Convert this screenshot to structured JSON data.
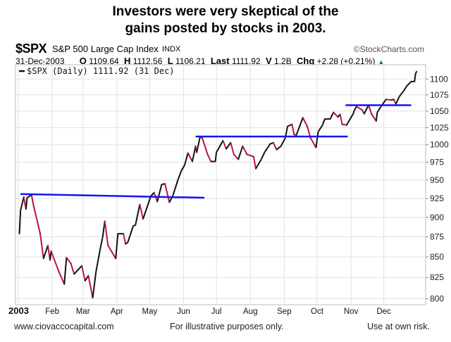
{
  "title": {
    "line1": "Investors were very skeptical of the",
    "line2": "gains posted by stocks in 2003."
  },
  "header": {
    "symbol": "$SPX",
    "name": "S&P 500 Large Cap Index",
    "exchange": "INDX",
    "brand": "©StockCharts.com",
    "date": "31-Dec-2003",
    "open_label": "O",
    "open": "1109.64",
    "high_label": "H",
    "high": "1112.56",
    "low_label": "L",
    "low": "1106.21",
    "last_label": "Last",
    "last": "1111.92",
    "volume_label": "V",
    "volume": "1.2B",
    "change_label": "Chg",
    "change": "+2.28 (+0.21%)",
    "change_icon": "up-triangle-icon"
  },
  "footer": {
    "website": "www.ciovaccocapital.com",
    "disclaimer": "For illustrative purposes only.",
    "risk": "Use at own risk."
  },
  "chart_data": {
    "type": "line",
    "legend": "$SPX (Daily) 1111.92 (31 Dec)",
    "legend_placement": "top-left",
    "y_scale": "log",
    "ylim": [
      793,
      1123
    ],
    "xlim": [
      "2003-01-01",
      "2003-12-31"
    ],
    "grid": true,
    "y_ticks": [
      1100,
      1075,
      1050,
      1025,
      1000,
      975,
      950,
      925,
      900,
      875,
      850,
      825,
      800
    ],
    "x_ticks": [
      {
        "date": "2003-01-01",
        "label": "2003",
        "bold": true
      },
      {
        "date": "2003-02-01",
        "label": "Feb"
      },
      {
        "date": "2003-03-01",
        "label": "Mar"
      },
      {
        "date": "2003-04-01",
        "label": "Apr"
      },
      {
        "date": "2003-05-01",
        "label": "May"
      },
      {
        "date": "2003-06-01",
        "label": "Jun"
      },
      {
        "date": "2003-07-01",
        "label": "Jul"
      },
      {
        "date": "2003-08-01",
        "label": "Aug"
      },
      {
        "date": "2003-09-01",
        "label": "Sep"
      },
      {
        "date": "2003-10-01",
        "label": "Oct"
      },
      {
        "date": "2003-11-01",
        "label": "Nov"
      },
      {
        "date": "2003-12-01",
        "label": "Dec"
      }
    ],
    "colors": {
      "up": "#111111",
      "down": "#c0143c",
      "trendline": "#1414f0",
      "grid": "#e2e2e2"
    },
    "series": [
      {
        "points": [
          [
            "2003-01-02",
            879
          ],
          [
            "2003-01-03",
            909
          ],
          [
            "2003-01-06",
            927
          ],
          [
            "2003-01-08",
            911
          ],
          [
            "2003-01-09",
            926
          ],
          [
            "2003-01-13",
            930
          ],
          [
            "2003-01-15",
            915
          ],
          [
            "2003-01-21",
            879
          ],
          [
            "2003-01-24",
            848
          ],
          [
            "2003-01-28",
            864
          ],
          [
            "2003-01-30",
            846
          ],
          [
            "2003-01-31",
            857
          ],
          [
            "2003-02-07",
            832
          ],
          [
            "2003-02-12",
            817
          ],
          [
            "2003-02-14",
            849
          ],
          [
            "2003-02-18",
            842
          ],
          [
            "2003-02-21",
            829
          ],
          [
            "2003-02-28",
            839
          ],
          [
            "2003-03-03",
            821
          ],
          [
            "2003-03-06",
            827
          ],
          [
            "2003-03-10",
            801
          ],
          [
            "2003-03-13",
            832
          ],
          [
            "2003-03-17",
            861
          ],
          [
            "2003-03-19",
            874
          ],
          [
            "2003-03-21",
            895
          ],
          [
            "2003-03-24",
            864
          ],
          [
            "2003-03-31",
            848
          ],
          [
            "2003-04-02",
            879
          ],
          [
            "2003-04-07",
            879
          ],
          [
            "2003-04-09",
            866
          ],
          [
            "2003-04-11",
            868
          ],
          [
            "2003-04-16",
            889
          ],
          [
            "2003-04-18",
            890
          ],
          [
            "2003-04-22",
            917
          ],
          [
            "2003-04-25",
            898
          ],
          [
            "2003-04-29",
            915
          ],
          [
            "2003-05-02",
            928
          ],
          [
            "2003-05-05",
            933
          ],
          [
            "2003-05-08",
            921
          ],
          [
            "2003-05-12",
            944
          ],
          [
            "2003-05-15",
            945
          ],
          [
            "2003-05-19",
            920
          ],
          [
            "2003-05-22",
            928
          ],
          [
            "2003-05-27",
            951
          ],
          [
            "2003-05-30",
            963
          ],
          [
            "2003-06-02",
            971
          ],
          [
            "2003-06-05",
            988
          ],
          [
            "2003-06-09",
            976
          ],
          [
            "2003-06-12",
            998
          ],
          [
            "2003-06-13",
            989
          ],
          [
            "2003-06-16",
            1011
          ],
          [
            "2003-06-18",
            1010
          ],
          [
            "2003-06-23",
            986
          ],
          [
            "2003-06-26",
            976
          ],
          [
            "2003-06-30",
            976
          ],
          [
            "2003-07-01",
            989
          ],
          [
            "2003-07-07",
            1006
          ],
          [
            "2003-07-10",
            994
          ],
          [
            "2003-07-14",
            1003
          ],
          [
            "2003-07-17",
            986
          ],
          [
            "2003-07-21",
            979
          ],
          [
            "2003-07-25",
            998
          ],
          [
            "2003-07-29",
            986
          ],
          [
            "2003-08-04",
            983
          ],
          [
            "2003-08-06",
            966
          ],
          [
            "2003-08-11",
            979
          ],
          [
            "2003-08-14",
            989
          ],
          [
            "2003-08-19",
            1001
          ],
          [
            "2003-08-22",
            1003
          ],
          [
            "2003-08-25",
            993
          ],
          [
            "2003-08-29",
            998
          ],
          [
            "2003-09-02",
            1010
          ],
          [
            "2003-09-04",
            1027
          ],
          [
            "2003-09-08",
            1030
          ],
          [
            "2003-09-10",
            1015
          ],
          [
            "2003-09-12",
            1014
          ],
          [
            "2003-09-18",
            1040
          ],
          [
            "2003-09-22",
            1027
          ],
          [
            "2003-09-25",
            1010
          ],
          [
            "2003-09-30",
            996
          ],
          [
            "2003-10-02",
            1019
          ],
          [
            "2003-10-06",
            1029
          ],
          [
            "2003-10-08",
            1038
          ],
          [
            "2003-10-13",
            1038
          ],
          [
            "2003-10-16",
            1048
          ],
          [
            "2003-10-20",
            1041
          ],
          [
            "2003-10-22",
            1045
          ],
          [
            "2003-10-24",
            1030
          ],
          [
            "2003-10-28",
            1029
          ],
          [
            "2003-11-03",
            1046
          ],
          [
            "2003-11-04",
            1051
          ],
          [
            "2003-11-06",
            1057
          ],
          [
            "2003-11-11",
            1052
          ],
          [
            "2003-11-13",
            1046
          ],
          [
            "2003-11-17",
            1059
          ],
          [
            "2003-11-20",
            1045
          ],
          [
            "2003-11-24",
            1035
          ],
          [
            "2003-11-25",
            1048
          ],
          [
            "2003-11-28",
            1056
          ],
          [
            "2003-12-03",
            1068
          ],
          [
            "2003-12-08",
            1067
          ],
          [
            "2003-12-10",
            1068
          ],
          [
            "2003-12-12",
            1061
          ],
          [
            "2003-12-15",
            1072
          ],
          [
            "2003-12-19",
            1081
          ],
          [
            "2003-12-22",
            1089
          ],
          [
            "2003-12-26",
            1096
          ],
          [
            "2003-12-29",
            1096
          ],
          [
            "2003-12-30",
            1109
          ],
          [
            "2003-12-31",
            1111.92
          ]
        ]
      }
    ],
    "trendlines": [
      {
        "from": [
          "2003-01-03",
          931
        ],
        "to": [
          "2003-06-20",
          926
        ]
      },
      {
        "from": [
          "2003-06-12",
          1012
        ],
        "to": [
          "2003-10-29",
          1012
        ]
      },
      {
        "from": [
          "2003-10-27",
          1059
        ],
        "to": [
          "2003-12-26",
          1059
        ]
      }
    ]
  }
}
